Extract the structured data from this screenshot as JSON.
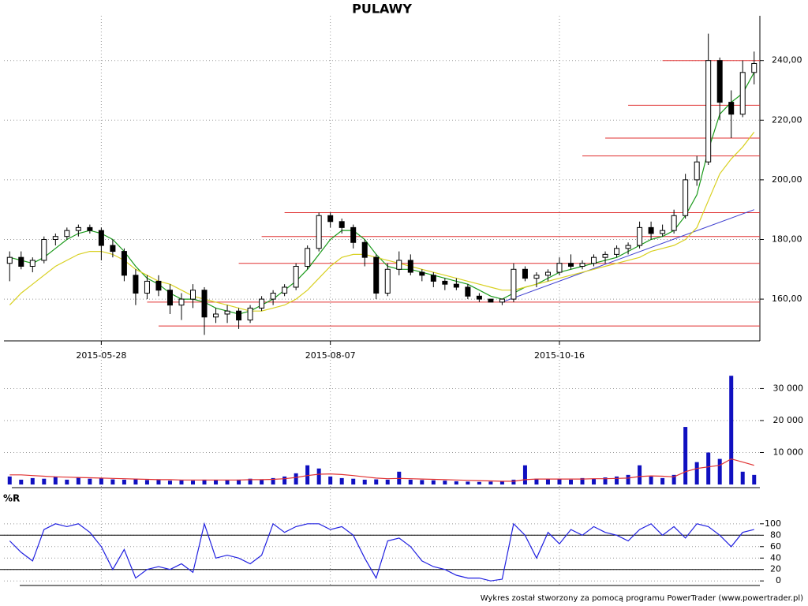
{
  "chart_data": [
    {
      "type": "candlestick",
      "title": "PULAWY",
      "categories": [
        null,
        null,
        null,
        null,
        null,
        null,
        null,
        null,
        "2015-05-28",
        null,
        null,
        null,
        null,
        null,
        null,
        null,
        null,
        null,
        null,
        null,
        null,
        null,
        null,
        null,
        null,
        null,
        null,
        null,
        "2015-08-07",
        null,
        null,
        null,
        null,
        null,
        null,
        null,
        null,
        null,
        null,
        null,
        null,
        null,
        null,
        null,
        null,
        null,
        null,
        null,
        "2015-10-16",
        null,
        null,
        null,
        null,
        null,
        null,
        null,
        null,
        null,
        null,
        null,
        null,
        null,
        null,
        null,
        null,
        null
      ],
      "open": [
        172,
        174,
        171,
        173,
        180,
        181,
        183,
        184,
        183,
        178,
        176,
        168,
        162,
        166,
        163,
        158,
        160,
        163,
        154,
        155,
        156,
        153,
        157,
        160,
        162,
        164,
        171,
        177,
        188,
        186,
        184,
        179,
        174,
        162,
        170,
        173,
        169,
        168,
        166,
        165,
        164,
        161,
        160,
        159,
        160,
        170,
        167,
        168,
        169,
        172,
        171,
        172,
        174,
        175,
        177,
        178,
        184,
        182,
        183,
        188,
        200,
        206,
        240,
        226,
        222,
        236
      ],
      "high": [
        176,
        176,
        174,
        181,
        182,
        184,
        185,
        185,
        184,
        180,
        177,
        170,
        168,
        168,
        165,
        162,
        165,
        164,
        157,
        158,
        157,
        158,
        161,
        163,
        165,
        172,
        178,
        189,
        189,
        187,
        185,
        180,
        175,
        172,
        176,
        175,
        170,
        169,
        167,
        167,
        165,
        162,
        160,
        160,
        172,
        171,
        169,
        170,
        174,
        175,
        173,
        175,
        176,
        178,
        179,
        186,
        186,
        185,
        190,
        202,
        208,
        249,
        241,
        230,
        240,
        243
      ],
      "low": [
        166,
        170,
        169,
        172,
        178,
        180,
        181,
        182,
        173,
        174,
        166,
        158,
        160,
        161,
        155,
        153,
        157,
        148,
        152,
        152,
        150,
        152,
        156,
        158,
        161,
        163,
        170,
        176,
        184,
        182,
        177,
        171,
        160,
        161,
        168,
        168,
        166,
        164,
        163,
        163,
        160,
        159,
        159,
        158,
        159,
        166,
        164,
        166,
        168,
        170,
        170,
        171,
        172,
        174,
        175,
        177,
        180,
        181,
        182,
        187,
        198,
        205,
        220,
        214,
        221,
        232
      ],
      "close": [
        174,
        171,
        173,
        180,
        181,
        183,
        184,
        183,
        178,
        176,
        168,
        162,
        166,
        163,
        158,
        160,
        163,
        154,
        155,
        156,
        153,
        157,
        160,
        162,
        164,
        171,
        177,
        188,
        186,
        184,
        179,
        174,
        162,
        170,
        173,
        169,
        168,
        166,
        165,
        164,
        161,
        160,
        159,
        160,
        170,
        167,
        168,
        169,
        172,
        171,
        172,
        174,
        175,
        177,
        178,
        184,
        182,
        183,
        188,
        200,
        206,
        240,
        226,
        222,
        236,
        239
      ],
      "series": [
        {
          "color": "#1a9a1a",
          "values": [
            174,
            173,
            172,
            174,
            177,
            180,
            182,
            183,
            182,
            180,
            176,
            171,
            167,
            165,
            162,
            160,
            160,
            159,
            157,
            156,
            155,
            156,
            158,
            160,
            163,
            166,
            170,
            175,
            180,
            183,
            183,
            180,
            175,
            171,
            170,
            170,
            169,
            168,
            167,
            166,
            165,
            163,
            161,
            160,
            162,
            164,
            165,
            167,
            169,
            170,
            171,
            172,
            173,
            174,
            176,
            178,
            180,
            181,
            183,
            188,
            195,
            210,
            222,
            226,
            229,
            236
          ]
        },
        {
          "color": "#d8d020",
          "values": [
            158,
            162,
            165,
            168,
            171,
            173,
            175,
            176,
            176,
            175,
            173,
            170,
            168,
            166,
            165,
            163,
            161,
            160,
            159,
            158,
            157,
            156,
            156,
            157,
            158,
            160,
            163,
            167,
            171,
            174,
            175,
            175,
            174,
            173,
            172,
            171,
            170,
            169,
            168,
            167,
            166,
            165,
            164,
            163,
            163,
            164,
            165,
            166,
            167,
            168,
            169,
            170,
            171,
            172,
            173,
            174,
            176,
            177,
            178,
            180,
            184,
            193,
            202,
            207,
            211,
            216
          ]
        }
      ],
      "levels": [
        {
          "value": 240,
          "from": 57
        },
        {
          "value": 225,
          "from": 54
        },
        {
          "value": 214,
          "from": 52
        },
        {
          "value": 208,
          "from": 50
        },
        {
          "value": 189,
          "from": 24
        },
        {
          "value": 181,
          "from": 22
        },
        {
          "value": 172,
          "from": 20
        },
        {
          "value": 159,
          "from": 12
        },
        {
          "value": 151,
          "from": 13
        }
      ],
      "level_color": "#e03030",
      "trendline": {
        "x": [
          43,
          65
        ],
        "values": [
          159,
          190
        ],
        "color": "#4040d0"
      },
      "ylim": [
        146,
        255
      ],
      "yticks": [
        {
          "value": 160,
          "label": "160,00"
        },
        {
          "value": 180,
          "label": "180,00"
        },
        {
          "value": 200,
          "label": "200,00"
        },
        {
          "value": 220,
          "label": "220,00"
        },
        {
          "value": 240,
          "label": "240,00"
        }
      ],
      "grid": true
    },
    {
      "type": "bar",
      "values": [
        2500,
        1500,
        2000,
        1800,
        2500,
        1500,
        2200,
        1800,
        2000,
        1600,
        1500,
        1800,
        1400,
        1500,
        1200,
        1300,
        1200,
        1500,
        1400,
        1300,
        1500,
        1800,
        1600,
        2000,
        2500,
        3500,
        6000,
        5000,
        2500,
        2000,
        1800,
        1500,
        1600,
        1500,
        4000,
        1500,
        1400,
        1300,
        1200,
        1000,
        900,
        800,
        900,
        1000,
        1500,
        6000,
        1800,
        1600,
        1800,
        1500,
        2000,
        1800,
        2200,
        2500,
        3000,
        6000,
        2500,
        2000,
        3000,
        18000,
        7000,
        10000,
        8000,
        34000,
        4000,
        3000
      ],
      "color": "#1010c0",
      "series": [
        {
          "color": "#e03030",
          "values": [
            3000,
            3000,
            2800,
            2600,
            2400,
            2300,
            2200,
            2100,
            2000,
            1900,
            1800,
            1700,
            1600,
            1500,
            1500,
            1400,
            1400,
            1400,
            1400,
            1400,
            1400,
            1500,
            1500,
            1600,
            1800,
            2200,
            2800,
            3200,
            3300,
            3100,
            2800,
            2400,
            2000,
            1800,
            1900,
            1800,
            1700,
            1600,
            1500,
            1400,
            1300,
            1200,
            1100,
            1000,
            1000,
            1500,
            1700,
            1700,
            1700,
            1700,
            1700,
            1800,
            1800,
            1900,
            2000,
            2500,
            2700,
            2600,
            2400,
            4000,
            5000,
            5500,
            6000,
            8000,
            7000,
            6000
          ]
        }
      ],
      "ylim": [
        0,
        38500
      ],
      "yticks": [
        {
          "value": 10000,
          "label": "10 000"
        },
        {
          "value": 20000,
          "label": "20 000"
        },
        {
          "value": 30000,
          "label": "30 000"
        }
      ],
      "grid": true
    },
    {
      "type": "line",
      "title": "%R",
      "series": [
        {
          "color": "#2020e0",
          "values": [
            70,
            50,
            35,
            90,
            100,
            95,
            100,
            85,
            60,
            20,
            55,
            5,
            20,
            25,
            20,
            30,
            15,
            100,
            40,
            45,
            40,
            30,
            45,
            100,
            85,
            95,
            100,
            100,
            90,
            95,
            80,
            40,
            5,
            70,
            75,
            60,
            35,
            25,
            20,
            10,
            5,
            5,
            0,
            3,
            100,
            80,
            40,
            85,
            65,
            90,
            80,
            95,
            85,
            80,
            70,
            90,
            100,
            80,
            95,
            75,
            100,
            95,
            80,
            60,
            85,
            90
          ]
        }
      ],
      "levels": [
        20,
        80
      ],
      "ylim": [
        -8,
        126
      ],
      "yticks": [
        0,
        20,
        40,
        60,
        80,
        100
      ],
      "grid": true
    },
    {
      "type": "note",
      "text": "Wykres został stworzony za pomocą programu PowerTrader (www.powertrader.pl)"
    }
  ]
}
